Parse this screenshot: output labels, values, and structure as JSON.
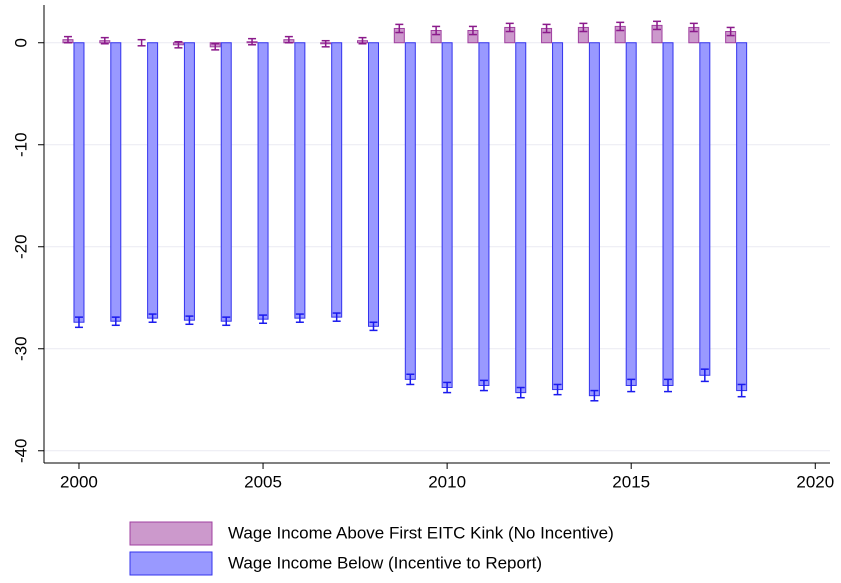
{
  "chart_data": {
    "type": "bar",
    "x": [
      2000,
      2001,
      2002,
      2003,
      2004,
      2005,
      2006,
      2007,
      2008,
      2009,
      2010,
      2011,
      2012,
      2013,
      2014,
      2015,
      2016,
      2017,
      2018
    ],
    "series": [
      {
        "name": "Wage Income Above First EITC Kink (No Incentive)",
        "color": "#cc99cc",
        "edge": "#a040a0",
        "error_color": "#8b1a8b",
        "values": [
          0.3,
          0.2,
          0.0,
          -0.2,
          -0.4,
          0.1,
          0.3,
          -0.1,
          0.2,
          1.4,
          1.2,
          1.2,
          1.5,
          1.4,
          1.5,
          1.6,
          1.7,
          1.5,
          1.1
        ],
        "errors": [
          0.3,
          0.3,
          0.3,
          0.3,
          0.3,
          0.3,
          0.3,
          0.3,
          0.3,
          0.4,
          0.4,
          0.4,
          0.4,
          0.4,
          0.4,
          0.4,
          0.4,
          0.4,
          0.4
        ]
      },
      {
        "name": "Wage Income Below (Incentive to Report)",
        "color": "#9999ff",
        "edge": "#3333ee",
        "error_color": "#1a1aee",
        "values": [
          -27.4,
          -27.3,
          -27.0,
          -27.2,
          -27.3,
          -27.1,
          -27.0,
          -26.9,
          -27.8,
          -33.0,
          -33.8,
          -33.6,
          -34.3,
          -34.0,
          -34.6,
          -33.6,
          -33.6,
          -32.6,
          -34.1
        ],
        "errors": [
          0.5,
          0.4,
          0.4,
          0.4,
          0.4,
          0.4,
          0.4,
          0.4,
          0.4,
          0.5,
          0.5,
          0.5,
          0.5,
          0.5,
          0.5,
          0.6,
          0.6,
          0.6,
          0.6
        ]
      }
    ],
    "xlim": [
      1999.05,
      2020.4
    ],
    "xticks": [
      2000,
      2005,
      2010,
      2015,
      2020
    ],
    "ylim": [
      -41.2,
      3.7
    ],
    "yticks": [
      0,
      -10,
      -20,
      -30,
      -40
    ],
    "grid": true
  }
}
